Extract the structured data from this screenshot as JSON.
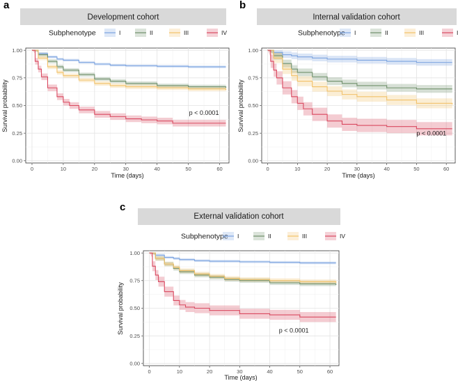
{
  "chart_data": [
    {
      "panel": "a",
      "type": "line",
      "title": "Development cohort",
      "legend_title": "Subphenotype",
      "xlabel": "Time (days)",
      "ylabel": "Survival probability",
      "xlim": [
        -2,
        63
      ],
      "ylim": [
        -0.02,
        1.02
      ],
      "xticks": [
        0,
        10,
        20,
        30,
        40,
        50,
        60
      ],
      "yticks": [
        0.0,
        0.25,
        0.5,
        0.75,
        1.0
      ],
      "ytick_labels": [
        "0.00",
        "0.25",
        "0.50",
        "0.75",
        "1.00"
      ],
      "annotation": "p < 0.0001",
      "annotation_at": [
        55,
        0.415
      ],
      "series": [
        {
          "name": "I",
          "color": "#7ba3e0",
          "band": 0.012,
          "x": [
            0,
            2,
            5,
            8,
            10,
            15,
            20,
            25,
            30,
            40,
            50,
            62
          ],
          "y": [
            1.0,
            0.97,
            0.94,
            0.92,
            0.91,
            0.89,
            0.875,
            0.865,
            0.86,
            0.855,
            0.85,
            0.85
          ]
        },
        {
          "name": "II",
          "color": "#6f8f6a",
          "band": 0.018,
          "x": [
            0,
            2,
            5,
            8,
            10,
            15,
            20,
            25,
            30,
            40,
            50,
            62
          ],
          "y": [
            1.0,
            0.96,
            0.9,
            0.85,
            0.82,
            0.78,
            0.74,
            0.72,
            0.7,
            0.68,
            0.67,
            0.66
          ]
        },
        {
          "name": "III",
          "color": "#f2c168",
          "band": 0.02,
          "x": [
            0,
            2,
            5,
            8,
            10,
            15,
            20,
            25,
            30,
            40,
            50,
            62
          ],
          "y": [
            1.0,
            0.93,
            0.85,
            0.8,
            0.77,
            0.73,
            0.7,
            0.68,
            0.67,
            0.66,
            0.65,
            0.64
          ]
        },
        {
          "name": "IV",
          "color": "#d9485f",
          "band": 0.03,
          "x": [
            0,
            1,
            2,
            3,
            5,
            8,
            10,
            12,
            15,
            20,
            25,
            30,
            35,
            40,
            45,
            50,
            62
          ],
          "y": [
            1.0,
            0.9,
            0.83,
            0.76,
            0.66,
            0.58,
            0.53,
            0.5,
            0.46,
            0.42,
            0.4,
            0.38,
            0.37,
            0.36,
            0.34,
            0.34,
            0.34
          ]
        }
      ]
    },
    {
      "panel": "b",
      "type": "line",
      "title": "Internal validation cohort",
      "legend_title": "Subphenotype",
      "xlabel": "Time (days)",
      "ylabel": "Survival probability",
      "xlim": [
        -2,
        63
      ],
      "ylim": [
        -0.02,
        1.02
      ],
      "xticks": [
        0,
        10,
        20,
        30,
        40,
        50,
        60
      ],
      "yticks": [
        0.0,
        0.25,
        0.5,
        0.75,
        1.0
      ],
      "ytick_labels": [
        "0.00",
        "0.25",
        "0.50",
        "0.75",
        "1.00"
      ],
      "annotation": "p < 0.0001",
      "annotation_at": [
        55,
        0.23
      ],
      "series": [
        {
          "name": "I",
          "color": "#7ba3e0",
          "band": 0.03,
          "x": [
            0,
            2,
            5,
            8,
            10,
            15,
            20,
            30,
            40,
            50,
            62
          ],
          "y": [
            1.0,
            0.98,
            0.96,
            0.95,
            0.94,
            0.93,
            0.92,
            0.91,
            0.9,
            0.89,
            0.89
          ]
        },
        {
          "name": "II",
          "color": "#6f8f6a",
          "band": 0.035,
          "x": [
            0,
            2,
            5,
            8,
            10,
            15,
            20,
            25,
            30,
            40,
            50,
            62
          ],
          "y": [
            1.0,
            0.95,
            0.88,
            0.83,
            0.8,
            0.76,
            0.72,
            0.7,
            0.68,
            0.66,
            0.65,
            0.65
          ]
        },
        {
          "name": "III",
          "color": "#f2c168",
          "band": 0.045,
          "x": [
            0,
            2,
            5,
            8,
            10,
            15,
            20,
            25,
            30,
            40,
            50,
            62
          ],
          "y": [
            1.0,
            0.93,
            0.83,
            0.77,
            0.72,
            0.67,
            0.63,
            0.6,
            0.58,
            0.55,
            0.52,
            0.51
          ]
        },
        {
          "name": "IV",
          "color": "#d9485f",
          "band": 0.06,
          "x": [
            0,
            1,
            2,
            3,
            5,
            8,
            10,
            12,
            15,
            20,
            25,
            30,
            40,
            50,
            62
          ],
          "y": [
            1.0,
            0.9,
            0.82,
            0.75,
            0.66,
            0.58,
            0.52,
            0.47,
            0.42,
            0.36,
            0.33,
            0.32,
            0.31,
            0.29,
            0.29
          ]
        }
      ]
    },
    {
      "panel": "c",
      "type": "line",
      "title": "External validation cohort",
      "legend_title": "Subphenotype",
      "xlabel": "Time (days)",
      "ylabel": "Survival probability",
      "xlim": [
        -2,
        63
      ],
      "ylim": [
        -0.02,
        1.02
      ],
      "xticks": [
        0,
        10,
        20,
        30,
        40,
        50,
        60
      ],
      "yticks": [
        0.0,
        0.25,
        0.5,
        0.75,
        1.0
      ],
      "ytick_labels": [
        "0.00",
        "0.25",
        "0.50",
        "0.75",
        "1.00"
      ],
      "annotation": "p < 0.0001",
      "annotation_at": [
        48,
        0.28
      ],
      "series": [
        {
          "name": "I",
          "color": "#7ba3e0",
          "band": 0.012,
          "x": [
            0,
            2,
            5,
            8,
            10,
            15,
            20,
            30,
            40,
            50,
            62
          ],
          "y": [
            1.0,
            0.98,
            0.96,
            0.95,
            0.94,
            0.93,
            0.925,
            0.92,
            0.915,
            0.91,
            0.91
          ]
        },
        {
          "name": "II",
          "color": "#6f8f6a",
          "band": 0.02,
          "x": [
            0,
            2,
            5,
            8,
            10,
            15,
            20,
            25,
            30,
            40,
            50,
            62
          ],
          "y": [
            1.0,
            0.95,
            0.9,
            0.86,
            0.83,
            0.8,
            0.78,
            0.76,
            0.75,
            0.73,
            0.72,
            0.71
          ]
        },
        {
          "name": "III",
          "color": "#f2c168",
          "band": 0.02,
          "x": [
            0,
            2,
            5,
            8,
            10,
            15,
            20,
            25,
            30,
            40,
            50,
            62
          ],
          "y": [
            1.0,
            0.95,
            0.9,
            0.87,
            0.84,
            0.81,
            0.79,
            0.77,
            0.76,
            0.75,
            0.74,
            0.73
          ]
        },
        {
          "name": "IV",
          "color": "#d9485f",
          "band": 0.045,
          "x": [
            0,
            1,
            2,
            3,
            5,
            8,
            10,
            12,
            15,
            20,
            30,
            40,
            50,
            62
          ],
          "y": [
            1.0,
            0.88,
            0.8,
            0.74,
            0.65,
            0.57,
            0.53,
            0.51,
            0.5,
            0.48,
            0.45,
            0.44,
            0.42,
            0.42
          ]
        }
      ]
    }
  ]
}
